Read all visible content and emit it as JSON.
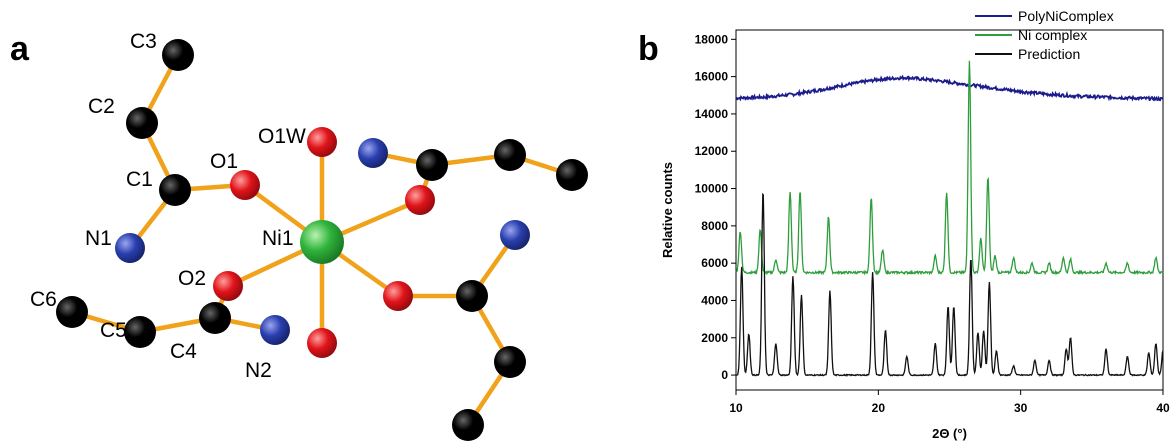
{
  "panel_a": {
    "letter": "a",
    "atoms": [
      {
        "id": "C3",
        "element": "C",
        "label": "C3"
      },
      {
        "id": "C2",
        "element": "C",
        "label": "C2"
      },
      {
        "id": "C1",
        "element": "C",
        "label": "C1"
      },
      {
        "id": "N1",
        "element": "N",
        "label": "N1"
      },
      {
        "id": "O1",
        "element": "O",
        "label": "O1"
      },
      {
        "id": "O1W",
        "element": "O",
        "label": "O1W"
      },
      {
        "id": "Ni1",
        "element": "Ni",
        "label": "Ni1"
      },
      {
        "id": "O2",
        "element": "O",
        "label": "O2"
      },
      {
        "id": "C4",
        "element": "C",
        "label": "C4"
      },
      {
        "id": "N2",
        "element": "N",
        "label": "N2"
      },
      {
        "id": "C5",
        "element": "C",
        "label": "C5"
      },
      {
        "id": "C6",
        "element": "C",
        "label": "C6"
      },
      {
        "id": "O1Wb",
        "element": "O",
        "label": ""
      },
      {
        "id": "O1b",
        "element": "O",
        "label": ""
      },
      {
        "id": "C1b",
        "element": "C",
        "label": ""
      },
      {
        "id": "N1b",
        "element": "N",
        "label": ""
      },
      {
        "id": "C2b",
        "element": "C",
        "label": ""
      },
      {
        "id": "C3b",
        "element": "C",
        "label": ""
      },
      {
        "id": "O2b",
        "element": "O",
        "label": ""
      },
      {
        "id": "C4b",
        "element": "C",
        "label": ""
      },
      {
        "id": "N2b",
        "element": "N",
        "label": ""
      },
      {
        "id": "C5b",
        "element": "C",
        "label": ""
      },
      {
        "id": "C6b",
        "element": "C",
        "label": ""
      }
    ],
    "bonds": [
      [
        "C3",
        "C2"
      ],
      [
        "C2",
        "C1"
      ],
      [
        "C1",
        "N1"
      ],
      [
        "C1",
        "O1"
      ],
      [
        "O1",
        "Ni1"
      ],
      [
        "O1W",
        "Ni1"
      ],
      [
        "Ni1",
        "O2"
      ],
      [
        "O2",
        "C4"
      ],
      [
        "C4",
        "N2"
      ],
      [
        "C4",
        "C5"
      ],
      [
        "C5",
        "C6"
      ],
      [
        "Ni1",
        "O1Wb"
      ],
      [
        "Ni1",
        "O1b"
      ],
      [
        "O1b",
        "C1b"
      ],
      [
        "C1b",
        "N1b"
      ],
      [
        "C1b",
        "C2b"
      ],
      [
        "C2b",
        "C3b"
      ],
      [
        "Ni1",
        "O2b"
      ],
      [
        "O2b",
        "C4b"
      ],
      [
        "C4b",
        "N2b"
      ],
      [
        "C4b",
        "C5b"
      ],
      [
        "C5b",
        "C6b"
      ]
    ],
    "colors": {
      "C": "#000000",
      "N": "#2a3fae",
      "O": "#e0141a",
      "Ni": "#2fb33a",
      "bond": "#f0a21a"
    }
  },
  "panel_b": {
    "letter": "b"
  },
  "chart_data": {
    "type": "line",
    "xlabel": "2Θ (°)",
    "ylabel": "Relative counts",
    "xlim": [
      10,
      40
    ],
    "ylim": [
      -800,
      18500
    ],
    "xticks": [
      10,
      20,
      30,
      40
    ],
    "yticks": [
      0,
      2000,
      4000,
      6000,
      8000,
      10000,
      12000,
      14000,
      16000,
      18000
    ],
    "legend_position": "top-right",
    "series": [
      {
        "name": "PolyNiComplex",
        "color": "#1c1c8c",
        "points": [
          [
            10,
            14850
          ],
          [
            12,
            14900
          ],
          [
            14,
            15050
          ],
          [
            16,
            15300
          ],
          [
            18,
            15600
          ],
          [
            20,
            15850
          ],
          [
            22,
            15950
          ],
          [
            24,
            15800
          ],
          [
            26,
            15600
          ],
          [
            28,
            15400
          ],
          [
            30,
            15200
          ],
          [
            32,
            15050
          ],
          [
            34,
            14950
          ],
          [
            36,
            14900
          ],
          [
            38,
            14850
          ],
          [
            40,
            14800
          ]
        ]
      },
      {
        "name": "Ni complex",
        "color": "#2e9e3c",
        "baseline": 5500,
        "peaks": [
          [
            10.3,
            7700
          ],
          [
            11.7,
            7800
          ],
          [
            12.8,
            6200
          ],
          [
            13.8,
            9800
          ],
          [
            14.5,
            9900
          ],
          [
            16.5,
            8500
          ],
          [
            19.5,
            9500
          ],
          [
            20.3,
            6700
          ],
          [
            24.0,
            6400
          ],
          [
            24.8,
            9800
          ],
          [
            26.4,
            16900
          ],
          [
            27.2,
            7300
          ],
          [
            27.7,
            10600
          ],
          [
            28.2,
            6400
          ],
          [
            29.5,
            6300
          ],
          [
            30.8,
            6000
          ],
          [
            32.0,
            6000
          ],
          [
            33.0,
            6300
          ],
          [
            33.5,
            6200
          ],
          [
            36.0,
            6000
          ],
          [
            37.5,
            6000
          ],
          [
            39.5,
            6300
          ]
        ]
      },
      {
        "name": "Prediction",
        "color": "#111111",
        "baseline": 0,
        "peaks": [
          [
            10.4,
            5800
          ],
          [
            10.9,
            2200
          ],
          [
            11.9,
            9900
          ],
          [
            12.8,
            1700
          ],
          [
            14.0,
            5300
          ],
          [
            14.6,
            4300
          ],
          [
            16.6,
            4500
          ],
          [
            19.6,
            5500
          ],
          [
            20.5,
            2400
          ],
          [
            22.0,
            1000
          ],
          [
            24.0,
            1700
          ],
          [
            24.9,
            3700
          ],
          [
            25.3,
            3700
          ],
          [
            26.5,
            6300
          ],
          [
            27.0,
            2300
          ],
          [
            27.4,
            2400
          ],
          [
            27.8,
            5000
          ],
          [
            28.3,
            1300
          ],
          [
            29.5,
            500
          ],
          [
            31.0,
            800
          ],
          [
            32.0,
            800
          ],
          [
            33.2,
            1400
          ],
          [
            33.5,
            2000
          ],
          [
            36.0,
            1400
          ],
          [
            37.5,
            1000
          ],
          [
            39.0,
            1200
          ],
          [
            39.5,
            1700
          ],
          [
            40.0,
            1300
          ]
        ]
      }
    ]
  }
}
